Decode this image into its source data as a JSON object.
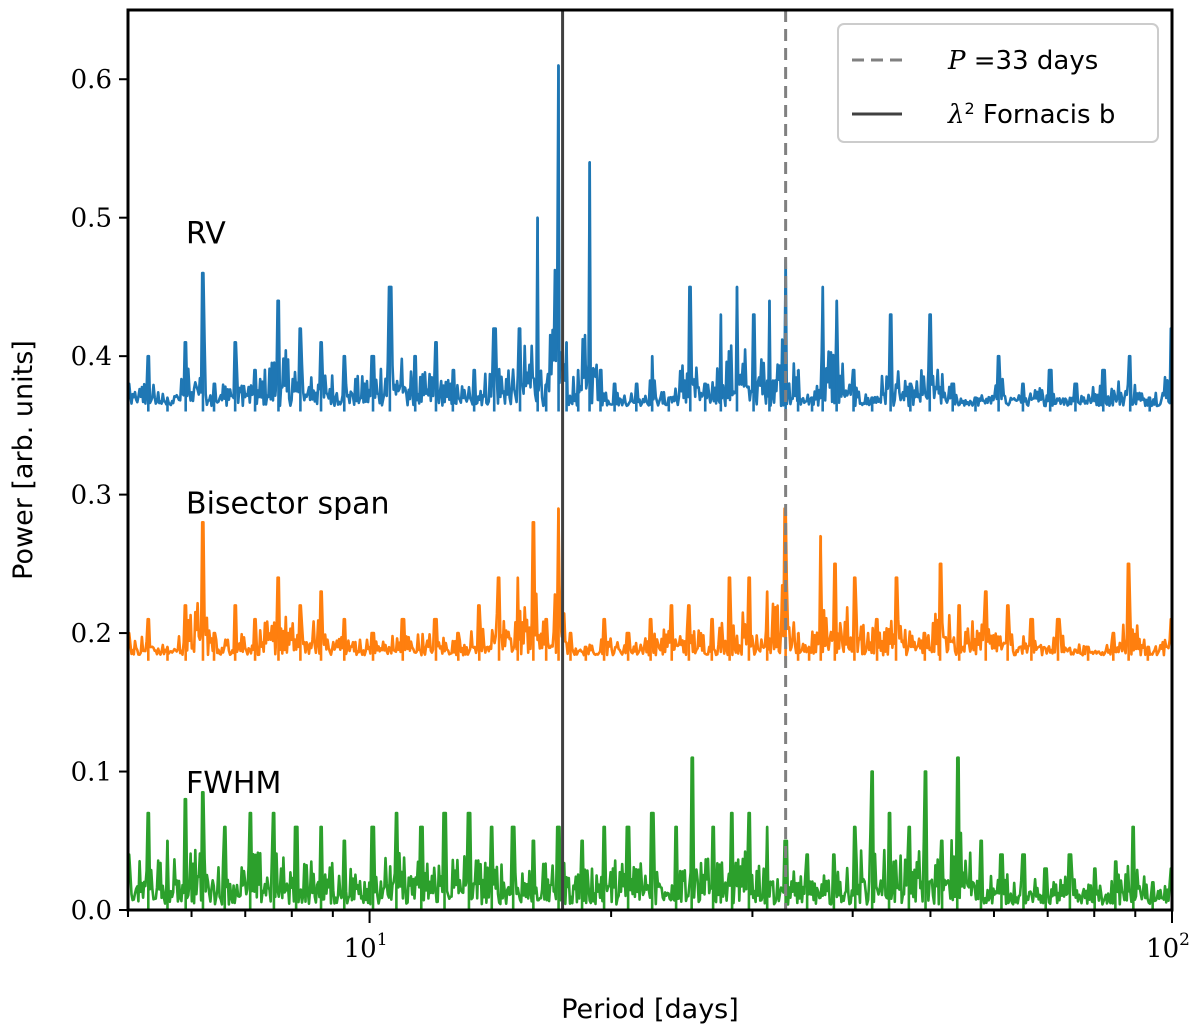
{
  "chart_data": {
    "type": "line",
    "title": "",
    "xlabel": "Period [days]",
    "ylabel": "Power [arb. units]",
    "xscale": "log",
    "xlim": [
      5.0,
      100.0
    ],
    "ylim": [
      0.0,
      0.65
    ],
    "yticks": [
      "0.0",
      "0.1",
      "0.2",
      "0.3",
      "0.4",
      "0.5",
      "0.6"
    ],
    "yticks_values": [
      0.0,
      0.1,
      0.2,
      0.3,
      0.4,
      0.5,
      0.6
    ],
    "xticks_major": [
      {
        "value": 10,
        "base": "10",
        "exp": "1"
      },
      {
        "value": 100,
        "base": "10",
        "exp": "2"
      }
    ],
    "grid": false,
    "legend_position": "top-right",
    "series": [
      {
        "name": "RV",
        "color": "#1f77b4",
        "baseline": 0.36,
        "points": [
          [
            5.0,
            0.38
          ],
          [
            5.3,
            0.4
          ],
          [
            5.6,
            0.37
          ],
          [
            5.9,
            0.41
          ],
          [
            6.2,
            0.46
          ],
          [
            6.4,
            0.38
          ],
          [
            6.8,
            0.41
          ],
          [
            7.2,
            0.39
          ],
          [
            7.7,
            0.44
          ],
          [
            8.2,
            0.42
          ],
          [
            8.7,
            0.41
          ],
          [
            9.3,
            0.4
          ],
          [
            10.1,
            0.4
          ],
          [
            10.6,
            0.45
          ],
          [
            11.4,
            0.4
          ],
          [
            12.1,
            0.41
          ],
          [
            12.7,
            0.39
          ],
          [
            13.5,
            0.39
          ],
          [
            14.3,
            0.42
          ],
          [
            15.4,
            0.42
          ],
          [
            16.2,
            0.5
          ],
          [
            16.6,
            0.38
          ],
          [
            17.2,
            0.61
          ],
          [
            17.6,
            0.41
          ],
          [
            18.2,
            0.39
          ],
          [
            18.8,
            0.54
          ],
          [
            19.4,
            0.39
          ],
          [
            20.2,
            0.38
          ],
          [
            21.5,
            0.38
          ],
          [
            22.5,
            0.4
          ],
          [
            23.6,
            0.37
          ],
          [
            25.1,
            0.45
          ],
          [
            26.2,
            0.38
          ],
          [
            27.4,
            0.43
          ],
          [
            28.7,
            0.45
          ],
          [
            30.1,
            0.43
          ],
          [
            31.5,
            0.44
          ],
          [
            33.0,
            0.47
          ],
          [
            34.2,
            0.39
          ],
          [
            35.6,
            0.37
          ],
          [
            36.7,
            0.45
          ],
          [
            38.2,
            0.44
          ],
          [
            40.1,
            0.39
          ],
          [
            42.3,
            0.37
          ],
          [
            44.6,
            0.43
          ],
          [
            47.2,
            0.38
          ],
          [
            49.9,
            0.43
          ],
          [
            53.3,
            0.38
          ],
          [
            56.9,
            0.37
          ],
          [
            60.8,
            0.4
          ],
          [
            65.2,
            0.38
          ],
          [
            70.5,
            0.39
          ],
          [
            75.8,
            0.38
          ],
          [
            82.1,
            0.39
          ],
          [
            88.7,
            0.4
          ],
          [
            93.8,
            0.37
          ],
          [
            100.0,
            0.42
          ]
        ]
      },
      {
        "name": "Bisector span",
        "color": "#ff7f0e",
        "baseline": 0.18,
        "points": [
          [
            5.0,
            0.2
          ],
          [
            5.3,
            0.21
          ],
          [
            5.6,
            0.19
          ],
          [
            5.9,
            0.22
          ],
          [
            6.2,
            0.28
          ],
          [
            6.4,
            0.2
          ],
          [
            6.8,
            0.22
          ],
          [
            7.2,
            0.21
          ],
          [
            7.7,
            0.24
          ],
          [
            8.2,
            0.22
          ],
          [
            8.7,
            0.23
          ],
          [
            9.3,
            0.21
          ],
          [
            10.1,
            0.2
          ],
          [
            11.0,
            0.21
          ],
          [
            12.1,
            0.21
          ],
          [
            12.9,
            0.2
          ],
          [
            13.7,
            0.22
          ],
          [
            14.5,
            0.24
          ],
          [
            15.3,
            0.24
          ],
          [
            16.0,
            0.28
          ],
          [
            16.6,
            0.21
          ],
          [
            17.2,
            0.29
          ],
          [
            17.8,
            0.2
          ],
          [
            18.6,
            0.19
          ],
          [
            19.6,
            0.21
          ],
          [
            21.0,
            0.2
          ],
          [
            22.4,
            0.21
          ],
          [
            23.8,
            0.22
          ],
          [
            25.0,
            0.22
          ],
          [
            26.7,
            0.21
          ],
          [
            28.1,
            0.24
          ],
          [
            29.7,
            0.24
          ],
          [
            31.3,
            0.23
          ],
          [
            33.0,
            0.29
          ],
          [
            34.2,
            0.2
          ],
          [
            35.3,
            0.19
          ],
          [
            36.5,
            0.27
          ],
          [
            38.0,
            0.25
          ],
          [
            40.2,
            0.24
          ],
          [
            42.9,
            0.21
          ],
          [
            45.3,
            0.24
          ],
          [
            49.2,
            0.2
          ],
          [
            51.4,
            0.25
          ],
          [
            54.3,
            0.22
          ],
          [
            58.6,
            0.23
          ],
          [
            62.4,
            0.22
          ],
          [
            66.8,
            0.21
          ],
          [
            72.1,
            0.21
          ],
          [
            78.6,
            0.19
          ],
          [
            84.5,
            0.2
          ],
          [
            88.3,
            0.25
          ],
          [
            93.3,
            0.19
          ],
          [
            100.0,
            0.21
          ]
        ]
      },
      {
        "name": "FWHM",
        "color": "#2ca02c",
        "baseline": 0.0,
        "points": [
          [
            5.0,
            0.04
          ],
          [
            5.3,
            0.07
          ],
          [
            5.6,
            0.05
          ],
          [
            5.9,
            0.08
          ],
          [
            6.2,
            0.085
          ],
          [
            6.6,
            0.06
          ],
          [
            7.1,
            0.07
          ],
          [
            7.6,
            0.07
          ],
          [
            8.1,
            0.06
          ],
          [
            8.7,
            0.06
          ],
          [
            9.3,
            0.05
          ],
          [
            10.1,
            0.06
          ],
          [
            10.8,
            0.07
          ],
          [
            11.6,
            0.06
          ],
          [
            12.4,
            0.07
          ],
          [
            13.3,
            0.07
          ],
          [
            14.2,
            0.06
          ],
          [
            15.1,
            0.06
          ],
          [
            16.0,
            0.05
          ],
          [
            17.2,
            0.06
          ],
          [
            18.4,
            0.05
          ],
          [
            19.6,
            0.06
          ],
          [
            21.0,
            0.06
          ],
          [
            22.5,
            0.07
          ],
          [
            24.1,
            0.06
          ],
          [
            25.2,
            0.11
          ],
          [
            26.8,
            0.06
          ],
          [
            28.3,
            0.07
          ],
          [
            29.7,
            0.07
          ],
          [
            31.3,
            0.06
          ],
          [
            33.0,
            0.05
          ],
          [
            35.1,
            0.04
          ],
          [
            37.9,
            0.04
          ],
          [
            40.3,
            0.06
          ],
          [
            42.3,
            0.1
          ],
          [
            44.4,
            0.07
          ],
          [
            47.0,
            0.06
          ],
          [
            49.3,
            0.1
          ],
          [
            51.7,
            0.05
          ],
          [
            54.0,
            0.11
          ],
          [
            57.8,
            0.05
          ],
          [
            61.3,
            0.04
          ],
          [
            65.3,
            0.04
          ],
          [
            69.6,
            0.03
          ],
          [
            74.6,
            0.04
          ],
          [
            80.1,
            0.03
          ],
          [
            85.0,
            0.035
          ],
          [
            89.5,
            0.06
          ],
          [
            94.6,
            0.02
          ],
          [
            100.0,
            0.03
          ]
        ]
      }
    ],
    "vlines": [
      {
        "name": "λ² Fornacis b",
        "x": 17.4,
        "style": "solid",
        "color": "#404040"
      },
      {
        "name": "P =33 days",
        "x": 33.0,
        "style": "dashed",
        "color": "#808080"
      }
    ],
    "annotations": [
      {
        "text": "RV",
        "x": 5.7,
        "y": 0.49
      },
      {
        "text": "Bisector span",
        "x": 5.7,
        "y": 0.295
      },
      {
        "text": "FWHM",
        "x": 5.7,
        "y": 0.093
      }
    ],
    "legend": {
      "entries": [
        {
          "prefix": "P",
          "text": " =33 days",
          "style": "dashed",
          "color": "#808080"
        },
        {
          "prefix": "λ",
          "sup": "2",
          "text": " Fornacis b",
          "style": "solid",
          "color": "#404040"
        }
      ]
    }
  }
}
